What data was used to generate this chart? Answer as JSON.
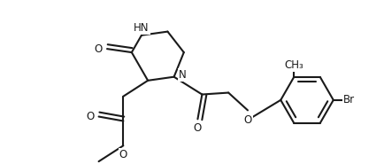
{
  "background": "#ffffff",
  "line_color": "#1a1a1a",
  "line_width": 1.5,
  "font_size": 8.5,
  "fig_width": 4.35,
  "fig_height": 1.85,
  "dpi": 100,
  "xlim": [
    0,
    4.35
  ],
  "ylim": [
    0,
    1.85
  ]
}
